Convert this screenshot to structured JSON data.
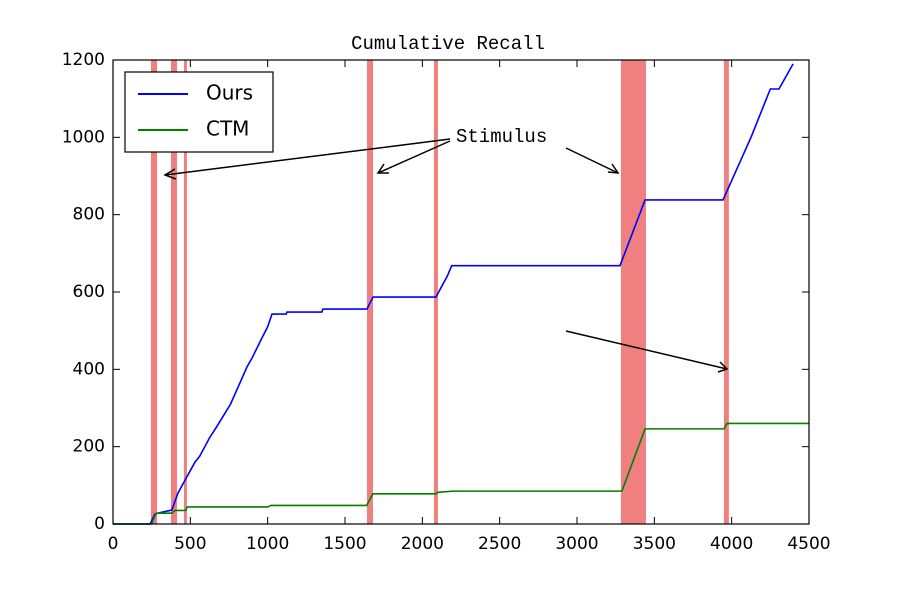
{
  "chart_data": {
    "type": "line",
    "title": "Cumulative Recall",
    "xlim": [
      0,
      4500
    ],
    "ylim": [
      0,
      1200
    ],
    "xticks": [
      0,
      500,
      1000,
      1500,
      2000,
      2500,
      3000,
      3500,
      4000,
      4500
    ],
    "yticks": [
      0,
      200,
      400,
      600,
      800,
      1000,
      1200
    ],
    "legend": "upper left",
    "annotation": "Stimulus",
    "stimulus": [
      [
        245,
        285
      ],
      [
        375,
        414
      ],
      [
        459,
        478
      ],
      [
        1642,
        1681
      ],
      [
        2075,
        2101
      ],
      [
        3284,
        3446
      ],
      [
        3950,
        3982
      ]
    ],
    "stimulus_color": "#f08080",
    "series": [
      {
        "name": "Ours",
        "color": "#0000ff",
        "x": [
          0,
          240,
          270,
          290,
          380,
          420,
          530,
          560,
          627,
          660,
          737,
          760,
          866,
          900,
          963,
          1000,
          1028,
          1120,
          1125,
          1350,
          1358,
          1642,
          1681,
          2088,
          2160,
          2190,
          3278,
          3440,
          3944,
          4125,
          4250,
          4306,
          4397
        ],
        "values": [
          0,
          0,
          25,
          28,
          36,
          80,
          160,
          175,
          225,
          245,
          295,
          310,
          406,
          430,
          481,
          510,
          543,
          543,
          548,
          548,
          556,
          556,
          587,
          587,
          640,
          668,
          668,
          838,
          838,
          1000,
          1125,
          1125,
          1190
        ]
      },
      {
        "name": "CTM",
        "color": "#007f00",
        "x": [
          0,
          250,
          270,
          280,
          380,
          400,
          470,
          480,
          1000,
          1020,
          1640,
          1680,
          2090,
          2100,
          2200,
          3290,
          3440,
          3950,
          3970,
          4500
        ],
        "values": [
          0,
          0,
          20,
          28,
          28,
          35,
          35,
          44,
          44,
          48,
          48,
          78,
          78,
          82,
          85,
          85,
          246,
          246,
          260,
          260
        ]
      }
    ]
  }
}
